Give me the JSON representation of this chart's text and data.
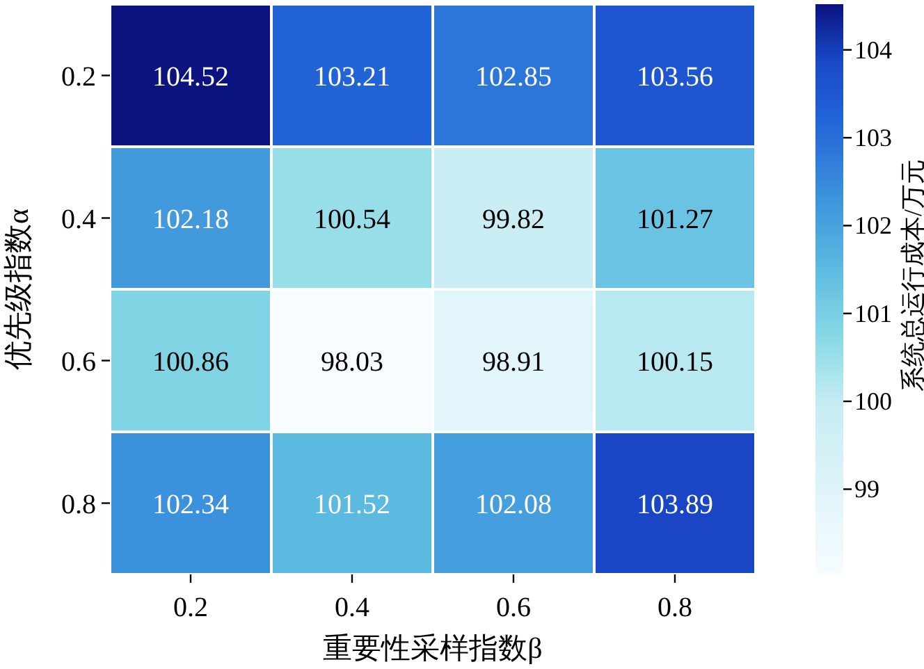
{
  "chart_data": {
    "type": "heatmap",
    "xlabel": "重要性采样指数β",
    "ylabel": "优先级指数α",
    "clabel": "系统总运行成本/万元",
    "categories": [
      "0.2",
      "0.4",
      "0.6",
      "0.8"
    ],
    "y_categories": [
      "0.2",
      "0.4",
      "0.6",
      "0.8"
    ],
    "cells": [
      [
        104.52,
        103.21,
        102.85,
        103.56
      ],
      [
        102.18,
        100.54,
        99.82,
        101.27
      ],
      [
        100.86,
        98.03,
        98.91,
        100.15
      ],
      [
        102.34,
        101.52,
        102.08,
        103.89
      ]
    ],
    "clim": [
      98.03,
      104.52
    ],
    "cticks": [
      99,
      100,
      101,
      102,
      103,
      104
    ],
    "data_labels": true
  }
}
